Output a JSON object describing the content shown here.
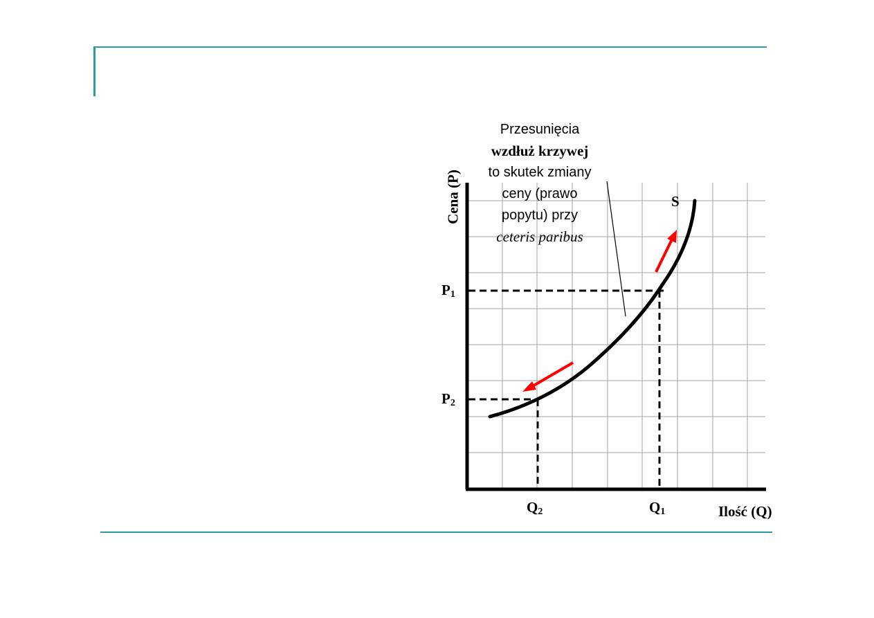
{
  "annotation": {
    "line1": "Przesunięcia",
    "line2": "wzdłuż krzywej",
    "line3": "to skutek zmiany",
    "line4": "ceny (prawo",
    "line5": "popytu) przy",
    "line6": "ceteris paribus"
  },
  "axes": {
    "y_label": "Cena (P)",
    "x_label": "Ilość (Q)"
  },
  "labels": {
    "curve": "S",
    "p1_base": "P",
    "p1_sub": "1",
    "p2_base": "P",
    "p2_sub": "2",
    "q1_base": "Q",
    "q1_sub": "1",
    "q2_base": "Q",
    "q2_sub": "2"
  },
  "colors": {
    "frame": "#2a9a9a",
    "grid": "#a0a0a0",
    "arrow": "#ff0000"
  }
}
